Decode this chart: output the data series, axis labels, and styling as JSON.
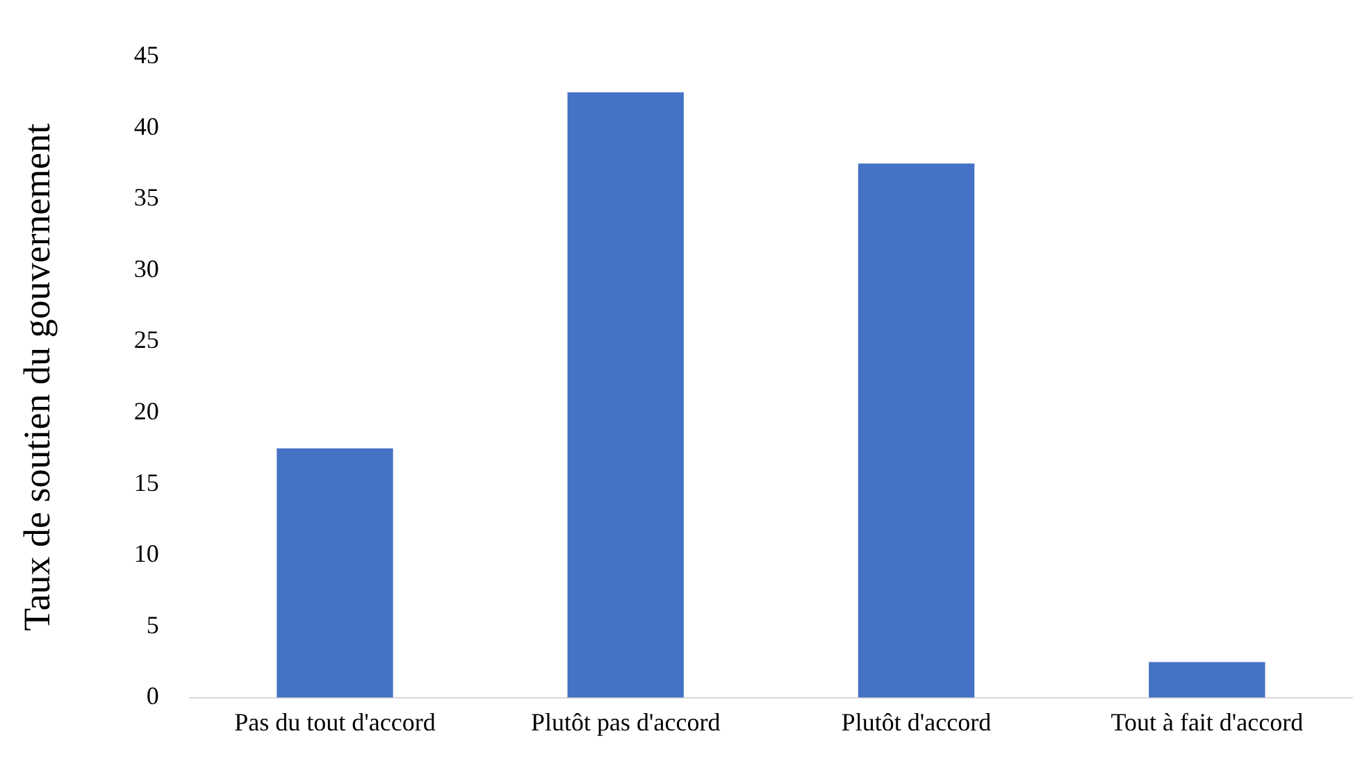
{
  "chart_data": {
    "type": "bar",
    "ylabel": "Taux de soutien du gouvernement",
    "categories": [
      "Pas du tout d'accord",
      "Plutôt pas d'accord",
      "Plutôt d'accord",
      "Tout à fait d'accord"
    ],
    "values": [
      17.5,
      42.5,
      37.5,
      2.5
    ],
    "color": "#4472c4",
    "ylim": [
      0,
      45
    ],
    "yticks": [
      0,
      5,
      10,
      15,
      20,
      25,
      30,
      35,
      40,
      45
    ],
    "grid": false,
    "legend": false
  }
}
